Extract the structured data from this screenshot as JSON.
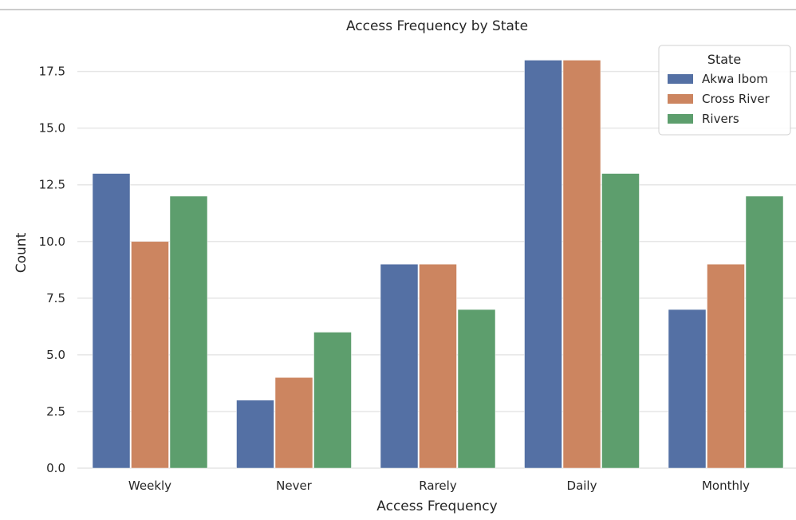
{
  "chart_data": {
    "type": "bar",
    "title": "Access Frequency by State",
    "xlabel": "Access Frequency",
    "ylabel": "Count",
    "categories": [
      "Weekly",
      "Never",
      "Rarely",
      "Daily",
      "Monthly"
    ],
    "series": [
      {
        "name": "Akwa Ibom",
        "color": "#5470a4",
        "values": [
          13,
          3,
          9,
          18,
          7
        ]
      },
      {
        "name": "Cross River",
        "color": "#cc8560",
        "values": [
          10,
          4,
          9,
          18,
          9
        ]
      },
      {
        "name": "Rivers",
        "color": "#5d9e6d",
        "values": [
          12,
          6,
          7,
          13,
          12
        ]
      }
    ],
    "ylim": [
      0,
      19
    ],
    "yticks": [
      0.0,
      2.5,
      5.0,
      7.5,
      10.0,
      12.5,
      15.0,
      17.5
    ],
    "grid": true,
    "legend": {
      "title": "State",
      "placement": "top-right"
    }
  }
}
